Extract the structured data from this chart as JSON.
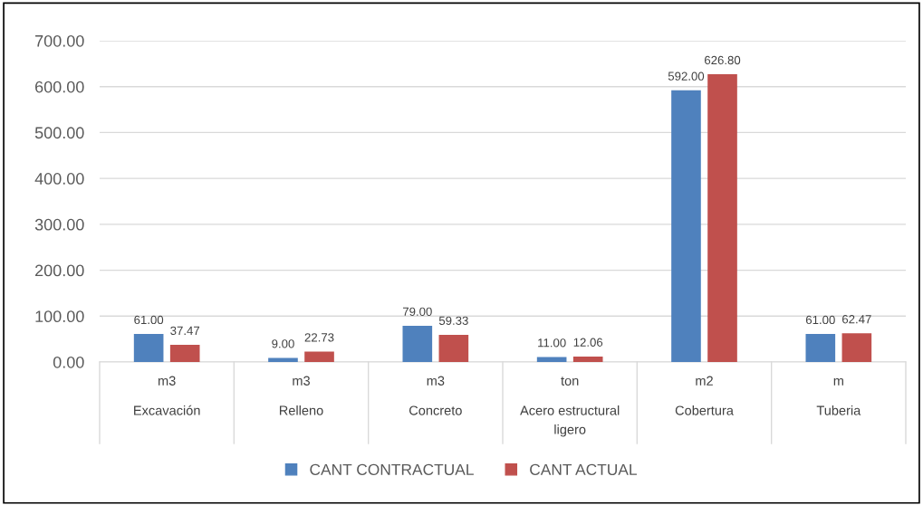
{
  "chart_data": {
    "type": "bar",
    "categories": [
      "m3\nExcavación",
      "m3\nRelleno",
      "m3\nConcreto",
      "ton\nAcero estructural\nligero",
      "m2\nCobertura",
      "m\nTuberia"
    ],
    "series": [
      {
        "name": "CANT CONTRACTUAL",
        "color": "#4f81bd",
        "values": [
          61.0,
          9.0,
          79.0,
          11.0,
          592.0,
          61.0
        ],
        "value_labels": [
          "61.00",
          "9.00",
          "79.00",
          "11.00",
          "592.00",
          "61.00"
        ]
      },
      {
        "name": "CANT ACTUAL",
        "color": "#c0504d",
        "values": [
          37.47,
          22.73,
          59.33,
          12.06,
          626.8,
          62.47
        ],
        "value_labels": [
          "37.47",
          "22.73",
          "59.33",
          "12.06",
          "626.80",
          "62.47"
        ]
      }
    ],
    "ylim": [
      0,
      700
    ],
    "yticks": [
      {
        "value": 0,
        "label": "0.00"
      },
      {
        "value": 100,
        "label": "100.00"
      },
      {
        "value": 200,
        "label": "200.00"
      },
      {
        "value": 300,
        "label": "300.00"
      },
      {
        "value": 400,
        "label": "400.00"
      },
      {
        "value": 500,
        "label": "500.00"
      },
      {
        "value": 600,
        "label": "600.00"
      },
      {
        "value": 700,
        "label": "700.00"
      }
    ],
    "grid": "y",
    "legend": "bottom"
  }
}
